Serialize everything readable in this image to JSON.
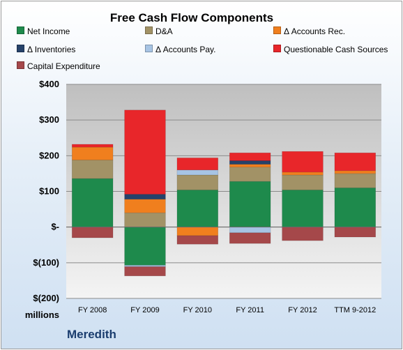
{
  "chart_data": {
    "type": "bar",
    "stacked": true,
    "title": "Free Cash Flow Components",
    "unit_label": "millions",
    "company": "Meredith",
    "categories": [
      "FY 2008",
      "FY 2009",
      "FY 2010",
      "FY 2011",
      "FY 2012",
      "TTM 9-2012"
    ],
    "ylim": [
      -200,
      400
    ],
    "yticks": [
      -200,
      -100,
      0,
      100,
      200,
      300,
      400
    ],
    "ytick_labels": [
      "$(200)",
      "$(100)",
      "$-",
      "$100",
      "$200",
      "$300",
      "$400"
    ],
    "grid": true,
    "legend_position": "top",
    "series": [
      {
        "name": "Net Income",
        "color": "#1e8a4c",
        "values": [
          136,
          -107,
          104,
          128,
          104,
          110
        ]
      },
      {
        "name": "D&A",
        "color": "#a29266",
        "values": [
          52,
          40,
          42,
          40,
          42,
          40
        ]
      },
      {
        "name": "Δ Accounts Rec.",
        "color": "#f07f1e",
        "values": [
          36,
          38,
          -24,
          8,
          8,
          8
        ]
      },
      {
        "name": "Δ Inventories",
        "color": "#26426a",
        "values": [
          0,
          14,
          0,
          10,
          0,
          0
        ]
      },
      {
        "name": "Δ Accounts Pay.",
        "color": "#a7c4e4",
        "values": [
          0,
          -4,
          14,
          -16,
          0,
          0
        ]
      },
      {
        "name": "Questionable Cash Sources",
        "color": "#e8262a",
        "values": [
          8,
          236,
          34,
          22,
          58,
          50
        ]
      },
      {
        "name": "Capital Expenditure",
        "color": "#a5484a",
        "values": [
          -30,
          -26,
          -24,
          -30,
          -38,
          -28
        ]
      }
    ]
  }
}
